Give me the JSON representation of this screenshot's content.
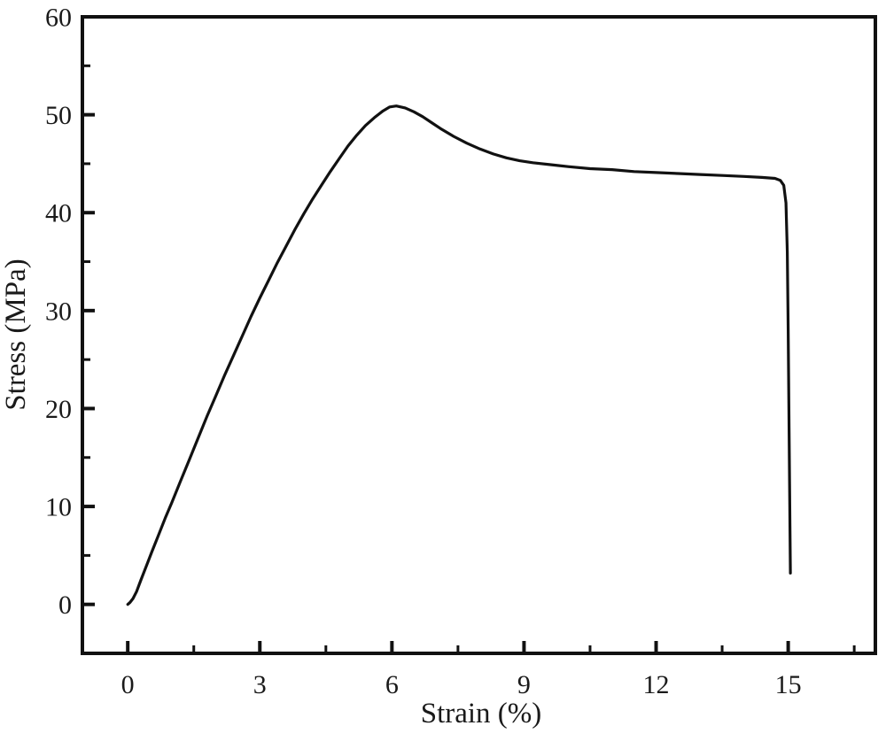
{
  "page": {
    "background_color": "#ffffff"
  },
  "chart_data": {
    "type": "line",
    "title": "",
    "xlabel": "Strain (%)",
    "ylabel": "Stress (MPa)",
    "xlim": [
      -1.03,
      16.98
    ],
    "ylim": [
      -5,
      60
    ],
    "x_major_ticks": [
      0,
      3,
      6,
      9,
      12,
      15
    ],
    "x_minor_ticks": [
      1.5,
      4.5,
      7.5,
      10.5,
      13.5,
      16.5
    ],
    "y_major_ticks": [
      0,
      10,
      20,
      30,
      40,
      50,
      60
    ],
    "y_minor_ticks": [
      5,
      15,
      25,
      35,
      45,
      55
    ],
    "x_tick_labels": [
      "0",
      "3",
      "6",
      "9",
      "12",
      "15"
    ],
    "y_tick_labels": [
      "0",
      "10",
      "20",
      "30",
      "40",
      "50",
      "60"
    ],
    "grid": false,
    "legend": null,
    "frame": "box",
    "tick_direction": "in",
    "colors": {
      "curve": "#111111",
      "axis": "#111111",
      "text": "#1a1a1a",
      "background": "#ffffff"
    },
    "series": [
      {
        "name": "stress-strain-curve",
        "points": [
          [
            0.0,
            0.0
          ],
          [
            0.05,
            0.2
          ],
          [
            0.12,
            0.6
          ],
          [
            0.2,
            1.3
          ],
          [
            0.3,
            2.5
          ],
          [
            0.42,
            3.9
          ],
          [
            0.55,
            5.4
          ],
          [
            0.7,
            7.1
          ],
          [
            0.85,
            8.8
          ],
          [
            1.0,
            10.4
          ],
          [
            1.2,
            12.6
          ],
          [
            1.4,
            14.8
          ],
          [
            1.6,
            17.0
          ],
          [
            1.8,
            19.2
          ],
          [
            2.0,
            21.3
          ],
          [
            2.2,
            23.4
          ],
          [
            2.4,
            25.4
          ],
          [
            2.6,
            27.4
          ],
          [
            2.8,
            29.4
          ],
          [
            3.0,
            31.3
          ],
          [
            3.2,
            33.1
          ],
          [
            3.4,
            34.9
          ],
          [
            3.6,
            36.6
          ],
          [
            3.8,
            38.3
          ],
          [
            4.0,
            39.9
          ],
          [
            4.2,
            41.4
          ],
          [
            4.4,
            42.8
          ],
          [
            4.6,
            44.2
          ],
          [
            4.8,
            45.5
          ],
          [
            5.0,
            46.8
          ],
          [
            5.2,
            47.9
          ],
          [
            5.4,
            48.9
          ],
          [
            5.6,
            49.7
          ],
          [
            5.8,
            50.4
          ],
          [
            5.95,
            50.8
          ],
          [
            6.1,
            50.9
          ],
          [
            6.3,
            50.7
          ],
          [
            6.5,
            50.3
          ],
          [
            6.7,
            49.8
          ],
          [
            6.9,
            49.2
          ],
          [
            7.1,
            48.6
          ],
          [
            7.4,
            47.8
          ],
          [
            7.7,
            47.1
          ],
          [
            8.0,
            46.5
          ],
          [
            8.3,
            46.0
          ],
          [
            8.6,
            45.6
          ],
          [
            8.9,
            45.3
          ],
          [
            9.2,
            45.1
          ],
          [
            9.6,
            44.9
          ],
          [
            10.0,
            44.7
          ],
          [
            10.5,
            44.5
          ],
          [
            11.0,
            44.4
          ],
          [
            11.5,
            44.2
          ],
          [
            12.0,
            44.1
          ],
          [
            12.5,
            44.0
          ],
          [
            13.0,
            43.9
          ],
          [
            13.5,
            43.8
          ],
          [
            14.0,
            43.7
          ],
          [
            14.4,
            43.6
          ],
          [
            14.7,
            43.5
          ],
          [
            14.82,
            43.3
          ],
          [
            14.9,
            42.8
          ],
          [
            14.95,
            41.0
          ],
          [
            14.98,
            36.0
          ],
          [
            15.0,
            28.0
          ],
          [
            15.02,
            18.0
          ],
          [
            15.04,
            8.0
          ],
          [
            15.05,
            3.2
          ]
        ]
      }
    ]
  }
}
